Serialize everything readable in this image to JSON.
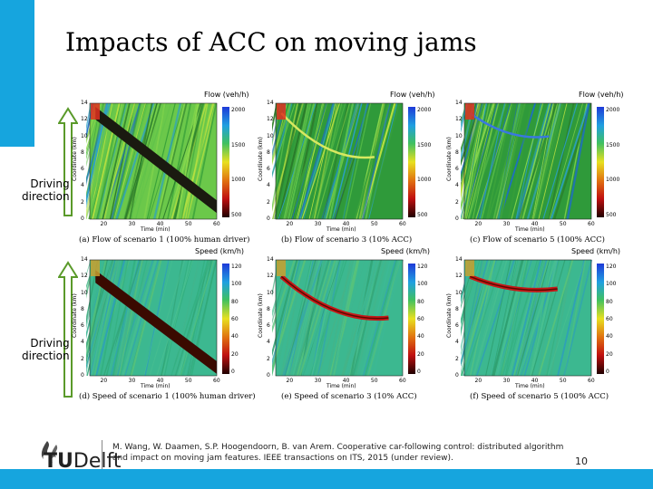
{
  "slide": {
    "title": "Impacts of ACC on moving jams",
    "page_number": "10",
    "accent_color": "#16a5de"
  },
  "driving_direction": {
    "line1": "Driving",
    "line2": "direction"
  },
  "logo": {
    "tu": "TU",
    "delft": "Delft"
  },
  "citation": "M. Wang, W. Daamen, S.P. Hoogendoorn, B. van Arem. Cooperative car-following control: distributed algorithm and impact on moving jam features. IEEE transactions on ITS, 2015 (under review).",
  "axis": {
    "xlabel": "Time (min)",
    "ylabel": "Coordinate (km)",
    "x_ticks": [
      "20",
      "30",
      "40",
      "50",
      "60"
    ],
    "y_ticks": [
      "0",
      "2",
      "4",
      "6",
      "8",
      "10",
      "12",
      "14"
    ]
  },
  "chart_data": [
    {
      "type": "heatmap",
      "panel_title": "Flow (veh/h)",
      "caption": "(a)  Flow of scenario 1 (100% human driver)",
      "colorbar_ticks": [
        "2000",
        "1500",
        "1000",
        "500"
      ],
      "xlim": [
        15,
        60
      ],
      "ylim": [
        0,
        14
      ],
      "jam": {
        "start": [
          17,
          12.8
        ],
        "end": [
          60,
          1.5
        ]
      }
    },
    {
      "type": "heatmap",
      "panel_title": "Flow (veh/h)",
      "caption": "(b)  Flow of scenario 3 (10% ACC)",
      "colorbar_ticks": [
        "2000",
        "1500",
        "1000",
        "500"
      ],
      "xlim": [
        15,
        60
      ],
      "ylim": [
        0,
        14
      ],
      "jam": {
        "start": [
          17,
          12.8
        ],
        "end": [
          50,
          7.5
        ]
      }
    },
    {
      "type": "heatmap",
      "panel_title": "Flow (veh/h)",
      "caption": "(c)  Flow of scenario 5 (100% ACC)",
      "colorbar_ticks": [
        "2000",
        "1500",
        "1000",
        "500"
      ],
      "xlim": [
        15,
        60
      ],
      "ylim": [
        0,
        14
      ],
      "jam": {
        "start": [
          17,
          12.8
        ],
        "end": [
          45,
          10.0
        ]
      }
    },
    {
      "type": "heatmap",
      "panel_title": "Speed (km/h)",
      "caption": "(d)  Speed of scenario 1 (100% human driver)",
      "colorbar_ticks": [
        "120",
        "100",
        "80",
        "60",
        "40",
        "20",
        "0"
      ],
      "xlim": [
        15,
        60
      ],
      "ylim": [
        0,
        14
      ],
      "jam": {
        "start": [
          17,
          12.0
        ],
        "end": [
          60,
          1.0
        ]
      }
    },
    {
      "type": "heatmap",
      "panel_title": "Speed (km/h)",
      "caption": "(e)  Speed of scenario 3 (10% ACC)",
      "colorbar_ticks": [
        "120",
        "100",
        "80",
        "60",
        "40",
        "20",
        "0"
      ],
      "xlim": [
        15,
        60
      ],
      "ylim": [
        0,
        14
      ],
      "jam": {
        "start": [
          17,
          12.0
        ],
        "end": [
          55,
          7.0
        ]
      }
    },
    {
      "type": "heatmap",
      "panel_title": "Speed (km/h)",
      "caption": "(f)  Speed of scenario 5 (100% ACC)",
      "colorbar_ticks": [
        "120",
        "100",
        "80",
        "60",
        "40",
        "20",
        "0"
      ],
      "xlim": [
        15,
        60
      ],
      "ylim": [
        0,
        14
      ],
      "jam": {
        "start": [
          17,
          12.0
        ],
        "end": [
          48,
          10.5
        ]
      }
    }
  ]
}
